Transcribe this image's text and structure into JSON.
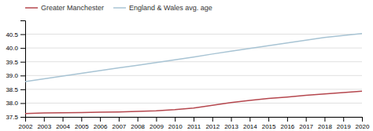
{
  "chart_data": {
    "type": "line",
    "x": [
      2002,
      2003,
      2004,
      2005,
      2006,
      2007,
      2008,
      2009,
      2010,
      2011,
      2012,
      2013,
      2014,
      2015,
      2016,
      2017,
      2018,
      2019,
      2020
    ],
    "series": [
      {
        "name": "Greater Manchester",
        "color": "#b5474e",
        "values": [
          37.62,
          37.64,
          37.65,
          37.66,
          37.67,
          37.68,
          37.7,
          37.72,
          37.76,
          37.82,
          37.92,
          38.02,
          38.1,
          38.17,
          38.22,
          38.28,
          38.33,
          38.38,
          38.43
        ]
      },
      {
        "name": "England & Wales avg. age",
        "color": "#a8c4d4",
        "values": [
          38.78,
          38.88,
          38.98,
          39.08,
          39.18,
          39.28,
          39.37,
          39.47,
          39.57,
          39.67,
          39.78,
          39.88,
          39.98,
          40.08,
          40.18,
          40.28,
          40.38,
          40.45,
          40.52
        ]
      }
    ],
    "xlim": [
      2002,
      2020
    ],
    "xticks": [
      2002,
      2003,
      2004,
      2005,
      2006,
      2007,
      2008,
      2009,
      2010,
      2011,
      2012,
      2013,
      2014,
      2015,
      2016,
      2017,
      2018,
      2019,
      2020
    ],
    "ylim": [
      37.5,
      41.0
    ],
    "yticks": [
      37.5,
      {
        "value": 38.0,
        "label": "38.0"
      },
      38.5,
      {
        "value": 39.0,
        "label": "39.0"
      },
      39.5,
      {
        "value": 40.0,
        "label": "40.0"
      },
      40.5
    ],
    "grid": true,
    "legend": "top-left"
  }
}
